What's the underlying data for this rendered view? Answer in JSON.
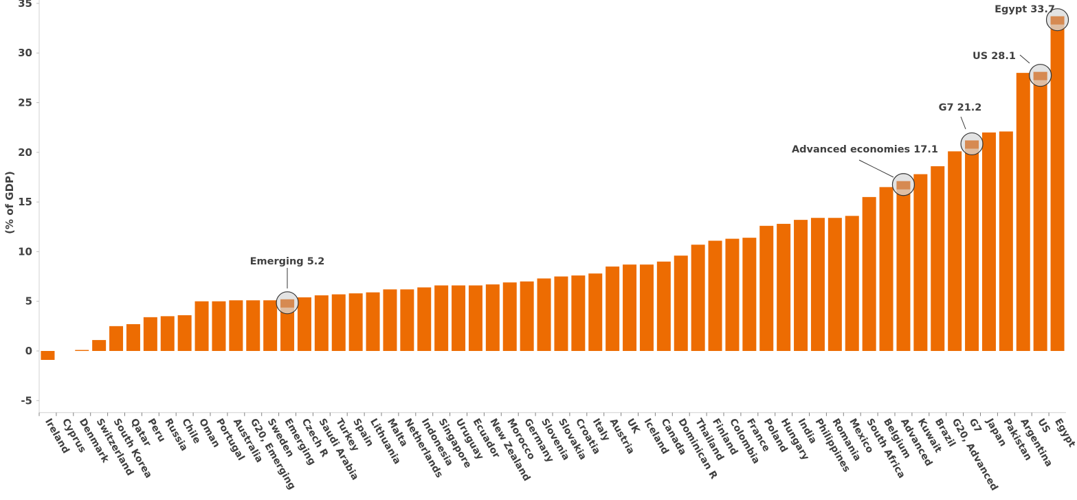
{
  "chart_data": {
    "type": "bar",
    "title": "",
    "xlabel": "",
    "ylabel": "(% of GDP)",
    "ylim": [
      -6,
      35
    ],
    "yticks": [
      -5,
      0,
      5,
      10,
      15,
      20,
      25,
      30,
      35
    ],
    "grid": false,
    "bar_color": "#ED6C02",
    "highlight_color": "#D9D9D9",
    "categories": [
      "Ireland",
      "Cyprus",
      "Denmark",
      "Switzerland",
      "South Korea",
      "Qatar",
      "Peru",
      "Russia",
      "Chile",
      "Oman",
      "Portugal",
      "Australia",
      "G20, Emerging",
      "Sweden",
      "Emerging",
      "Czech R",
      "Saudi Arabia",
      "Turkey",
      "Spain",
      "Lithuania",
      "Malta",
      "Netherlands",
      "Indonesia",
      "Singapore",
      "Uruguay",
      "Ecuador",
      "New Zealand",
      "Morocco",
      "Germany",
      "Slovenia",
      "Slovakia",
      "Croatia",
      "Italy",
      "Austria",
      "UK",
      "Iceland",
      "Canada",
      "Dominican R",
      "Thailand",
      "Finland",
      "Colombia",
      "France",
      "Poland",
      "Hungary",
      "India",
      "Philippines",
      "Romania",
      "Mexico",
      "South Africa",
      "Belgium",
      "Advanced",
      "Kuwait",
      "Brazil",
      "G20, Advanced",
      "G7",
      "Japan",
      "Pakistan",
      "Argentina",
      "US",
      "Egypt"
    ],
    "values": [
      -0.9,
      0,
      0.1,
      1.1,
      2.5,
      2.7,
      3.4,
      3.5,
      3.6,
      5.0,
      5.0,
      5.1,
      5.1,
      5.1,
      5.2,
      5.4,
      5.6,
      5.7,
      5.8,
      5.9,
      6.2,
      6.2,
      6.4,
      6.6,
      6.6,
      6.6,
      6.7,
      6.9,
      7.0,
      7.3,
      7.5,
      7.6,
      7.8,
      8.5,
      8.7,
      8.7,
      9.0,
      9.6,
      10.7,
      11.1,
      11.3,
      11.4,
      12.6,
      12.8,
      13.2,
      13.4,
      13.4,
      13.6,
      15.5,
      16.5,
      17.1,
      17.8,
      18.6,
      20.1,
      21.2,
      22.0,
      22.1,
      28.0,
      28.1,
      33.7
    ],
    "annotations": [
      {
        "category": "Emerging",
        "label": "Emerging 5.2"
      },
      {
        "category": "Advanced",
        "label": "Advanced economies 17.1"
      },
      {
        "category": "G7",
        "label": "G7 21.2"
      },
      {
        "category": "US",
        "label": "US 28.1"
      },
      {
        "category": "Egypt",
        "label": "Egypt 33.7"
      }
    ]
  }
}
